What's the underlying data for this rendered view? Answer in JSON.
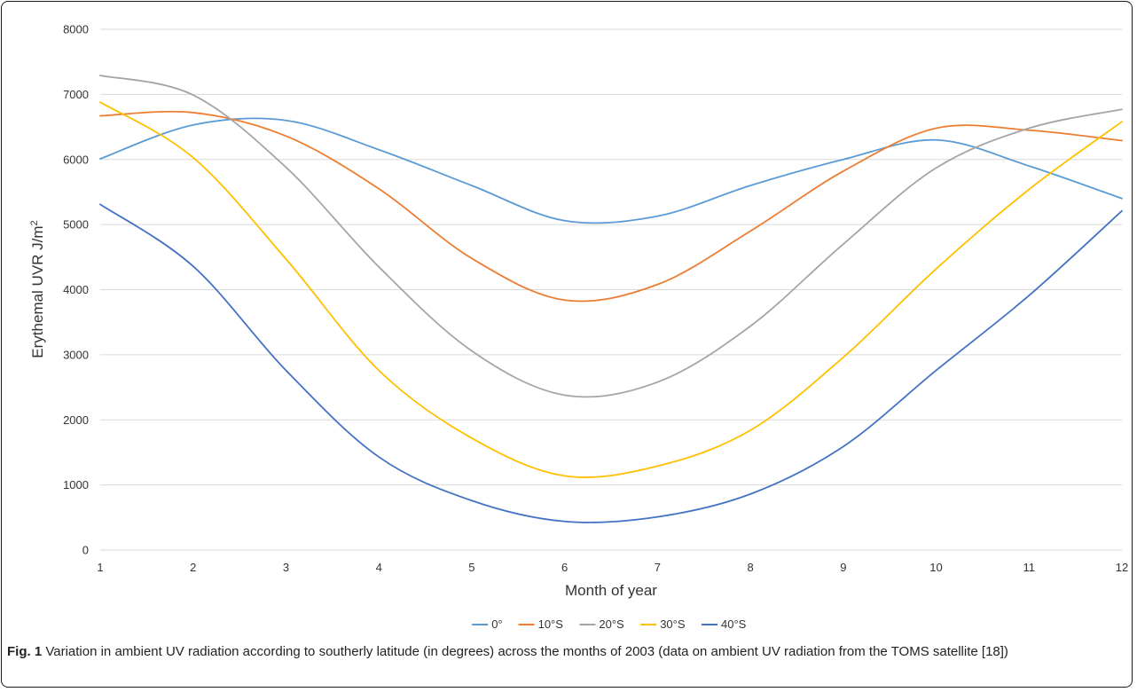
{
  "chart_data": {
    "type": "line",
    "xlabel": "Month of year",
    "ylabel": "Erythemal UVR J/m",
    "ylabel_superscript": "2",
    "x": [
      1,
      2,
      3,
      4,
      5,
      6,
      7,
      8,
      9,
      10,
      11,
      12
    ],
    "xlim": [
      1,
      12
    ],
    "ylim": [
      0,
      8000
    ],
    "x_ticks": [
      "1",
      "2",
      "3",
      "4",
      "5",
      "6",
      "7",
      "8",
      "9",
      "10",
      "11",
      "12"
    ],
    "y_ticks": [
      "0",
      "1000",
      "2000",
      "3000",
      "4000",
      "5000",
      "6000",
      "7000",
      "8000"
    ],
    "grid": "horizontal",
    "legend_position": "bottom",
    "smooth": true,
    "series": [
      {
        "name": "0°",
        "color": "#5B9BD5",
        "values": [
          6010,
          6530,
          6600,
          6150,
          5600,
          5060,
          5130,
          5600,
          6000,
          6300,
          5900,
          5400
        ]
      },
      {
        "name": "10°S",
        "color": "#ED7D31",
        "values": [
          6670,
          6720,
          6360,
          5550,
          4480,
          3840,
          4080,
          4900,
          5820,
          6480,
          6450,
          6290
        ]
      },
      {
        "name": "20°S",
        "color": "#A5A5A5",
        "values": [
          7290,
          6990,
          5880,
          4350,
          3060,
          2380,
          2580,
          3440,
          4700,
          5870,
          6480,
          6770
        ]
      },
      {
        "name": "30°S",
        "color": "#FFC000",
        "values": [
          6880,
          6030,
          4470,
          2760,
          1720,
          1140,
          1290,
          1840,
          2960,
          4320,
          5540,
          6580
        ]
      },
      {
        "name": "40°S",
        "color": "#4472C4",
        "values": [
          5310,
          4360,
          2760,
          1430,
          760,
          440,
          510,
          860,
          1590,
          2760,
          3910,
          5210
        ]
      }
    ]
  },
  "caption": {
    "label": "Fig. 1",
    "text": " Variation in ambient UV radiation according to southerly latitude (in degrees) across the months of 2003 (data on ambient UV radiation from the TOMS satellite [18])"
  }
}
